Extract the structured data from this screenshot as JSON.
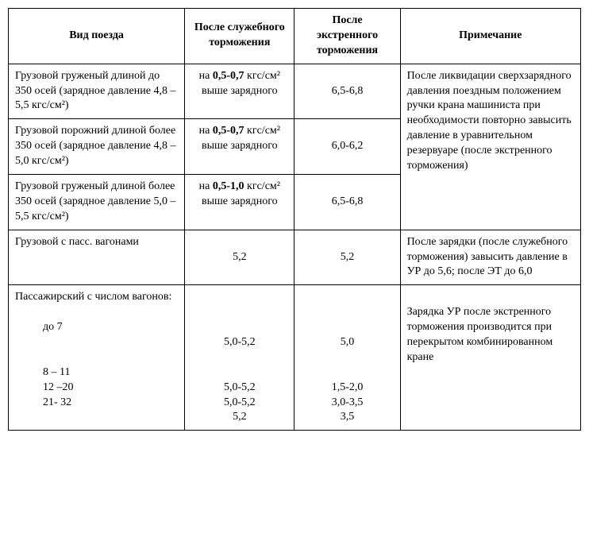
{
  "headers": {
    "col1": "Вид поезда",
    "col2": "После служебного торможения",
    "col3": "После экстренного торможения",
    "col4": "Примечание"
  },
  "rows": {
    "r1": {
      "type": "Грузовой груженый  длиной до 350 осей (зарядное давление 4,8 – 5,5 кгс/см²)",
      "val1_prefix": "на ",
      "val1_bold": "0,5-0,7",
      "val1_unit": " кгс/см²",
      "val1_suffix": " выше зарядного",
      "val2": "6,5-6,8"
    },
    "r2": {
      "type": "Грузовой порожний длиной более 350 осей (зарядное давление 4,8 – 5,0 кгс/см²)",
      "val1_prefix": "на ",
      "val1_bold": "0,5-0,7",
      "val1_unit": " кгс/см²",
      "val1_suffix": " выше зарядного",
      "val2": "6,0-6,2"
    },
    "r3": {
      "type": "Грузовой груженый длиной более 350 осей (зарядное давление 5,0 – 5,5 кгс/см²)",
      "val1_prefix": "на ",
      "val1_bold": "0,5-1,0",
      "val1_unit": " кгс/см²",
      "val1_suffix": " выше зарядного",
      "val2": "6,5-6,8",
      "note_merged": "После ликвидации сверхзарядного давления поездным положением ручки крана машиниста при необходимости повторно завысить давление в уравнительном резервуаре (после экстренного торможения)"
    },
    "r4": {
      "type": "Грузовой с пасс. вагонами",
      "val1": "5,2",
      "val2": "5,2",
      "note": "После зарядки (после служебного торможения) завысить давление в УР до 5,6; после ЭТ до 6,0"
    },
    "r5": {
      "type_header": "Пассажирский с числом вагонов:",
      "sub1_label": "до 7",
      "sub1_v1": "5,0-5,2",
      "sub1_v2": "5,0",
      "sub2_label": "8 – 11",
      "sub2_v1": "5,0-5,2",
      "sub2_v2": "1,5-2,0",
      "sub3_label": "12 –20",
      "sub3_v1": "5,0-5,2",
      "sub3_v2": "3,0-3,5",
      "sub4_label": "21- 32",
      "sub4_v1": "5,2",
      "sub4_v2": "3,5",
      "note": "Зарядка УР после экстренного торможения производится при перекрытом комбинированном кране"
    }
  }
}
